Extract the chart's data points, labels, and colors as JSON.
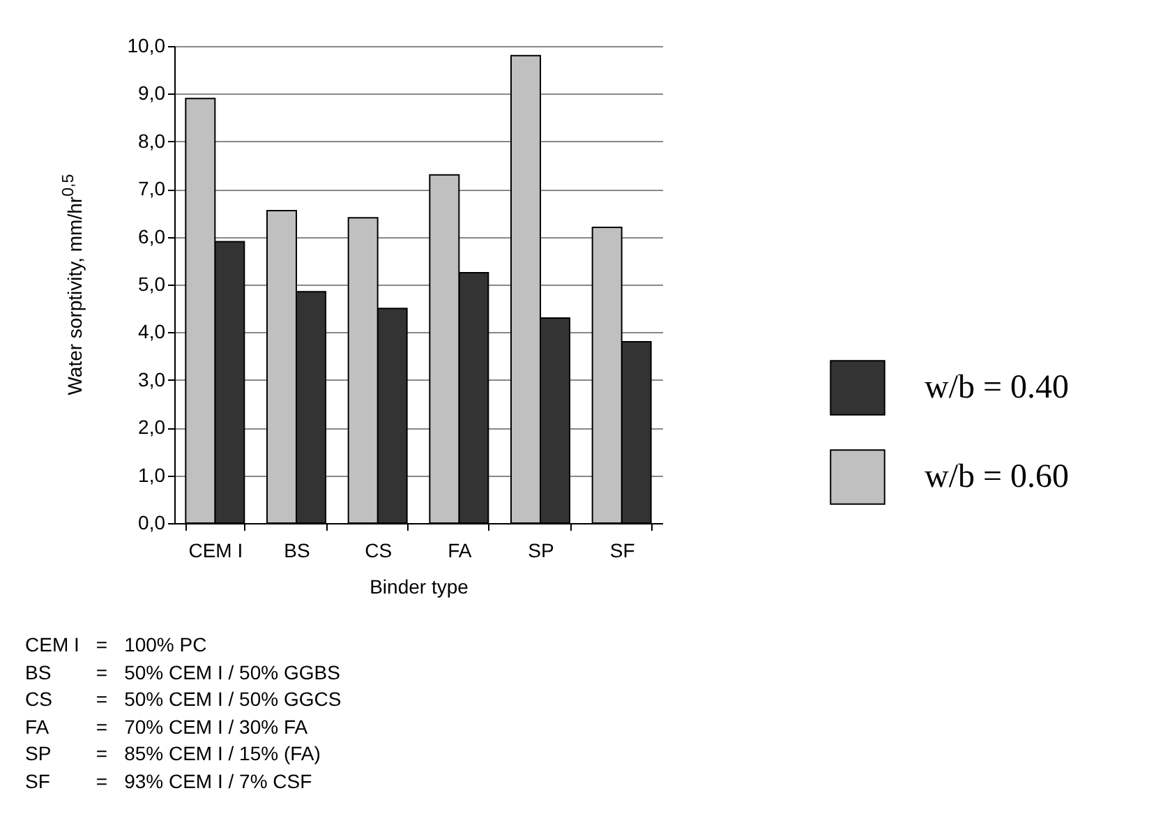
{
  "chart_data": {
    "type": "bar",
    "xlabel": "Binder type",
    "ylabel": "Water sorptivity, mm/hr$^{0,5}$",
    "categories": [
      "CEM I",
      "BS",
      "CS",
      "FA",
      "SP",
      "SF"
    ],
    "series": [
      {
        "name": "w/b = 0.40",
        "color": "#333333",
        "values": [
          5.9,
          4.85,
          4.5,
          5.25,
          4.3,
          3.8
        ]
      },
      {
        "name": "w/b = 0.60",
        "color": "#c0c0c0",
        "values": [
          8.9,
          6.55,
          6.4,
          7.3,
          9.8,
          6.2
        ]
      }
    ],
    "ylim": [
      0,
      10
    ],
    "yticks": [
      {
        "value": 0,
        "label": "0,0"
      },
      {
        "value": 1,
        "label": "1,0"
      },
      {
        "value": 2,
        "label": "2,0"
      },
      {
        "value": 3,
        "label": "3,0"
      },
      {
        "value": 4,
        "label": "4,0"
      },
      {
        "value": 5,
        "label": "5,0"
      },
      {
        "value": 6,
        "label": "6,0"
      },
      {
        "value": 7,
        "label": "7,0"
      },
      {
        "value": 8,
        "label": "8,0"
      },
      {
        "value": 9,
        "label": "9,0"
      },
      {
        "value": 10,
        "label": "10,0"
      }
    ],
    "grid": "y",
    "legend": "right",
    "annotations": [
      "CEM I = 100% PC",
      "BS = 50% CEM I / 50% GGBS",
      "CS = 50% CEM I / 50% GGCS",
      "FA = 70% CEM I / 30% FA",
      "SP = 85% CEM I / 15% (FA)",
      "SF = 93% CEM I / 7% CSF"
    ]
  }
}
